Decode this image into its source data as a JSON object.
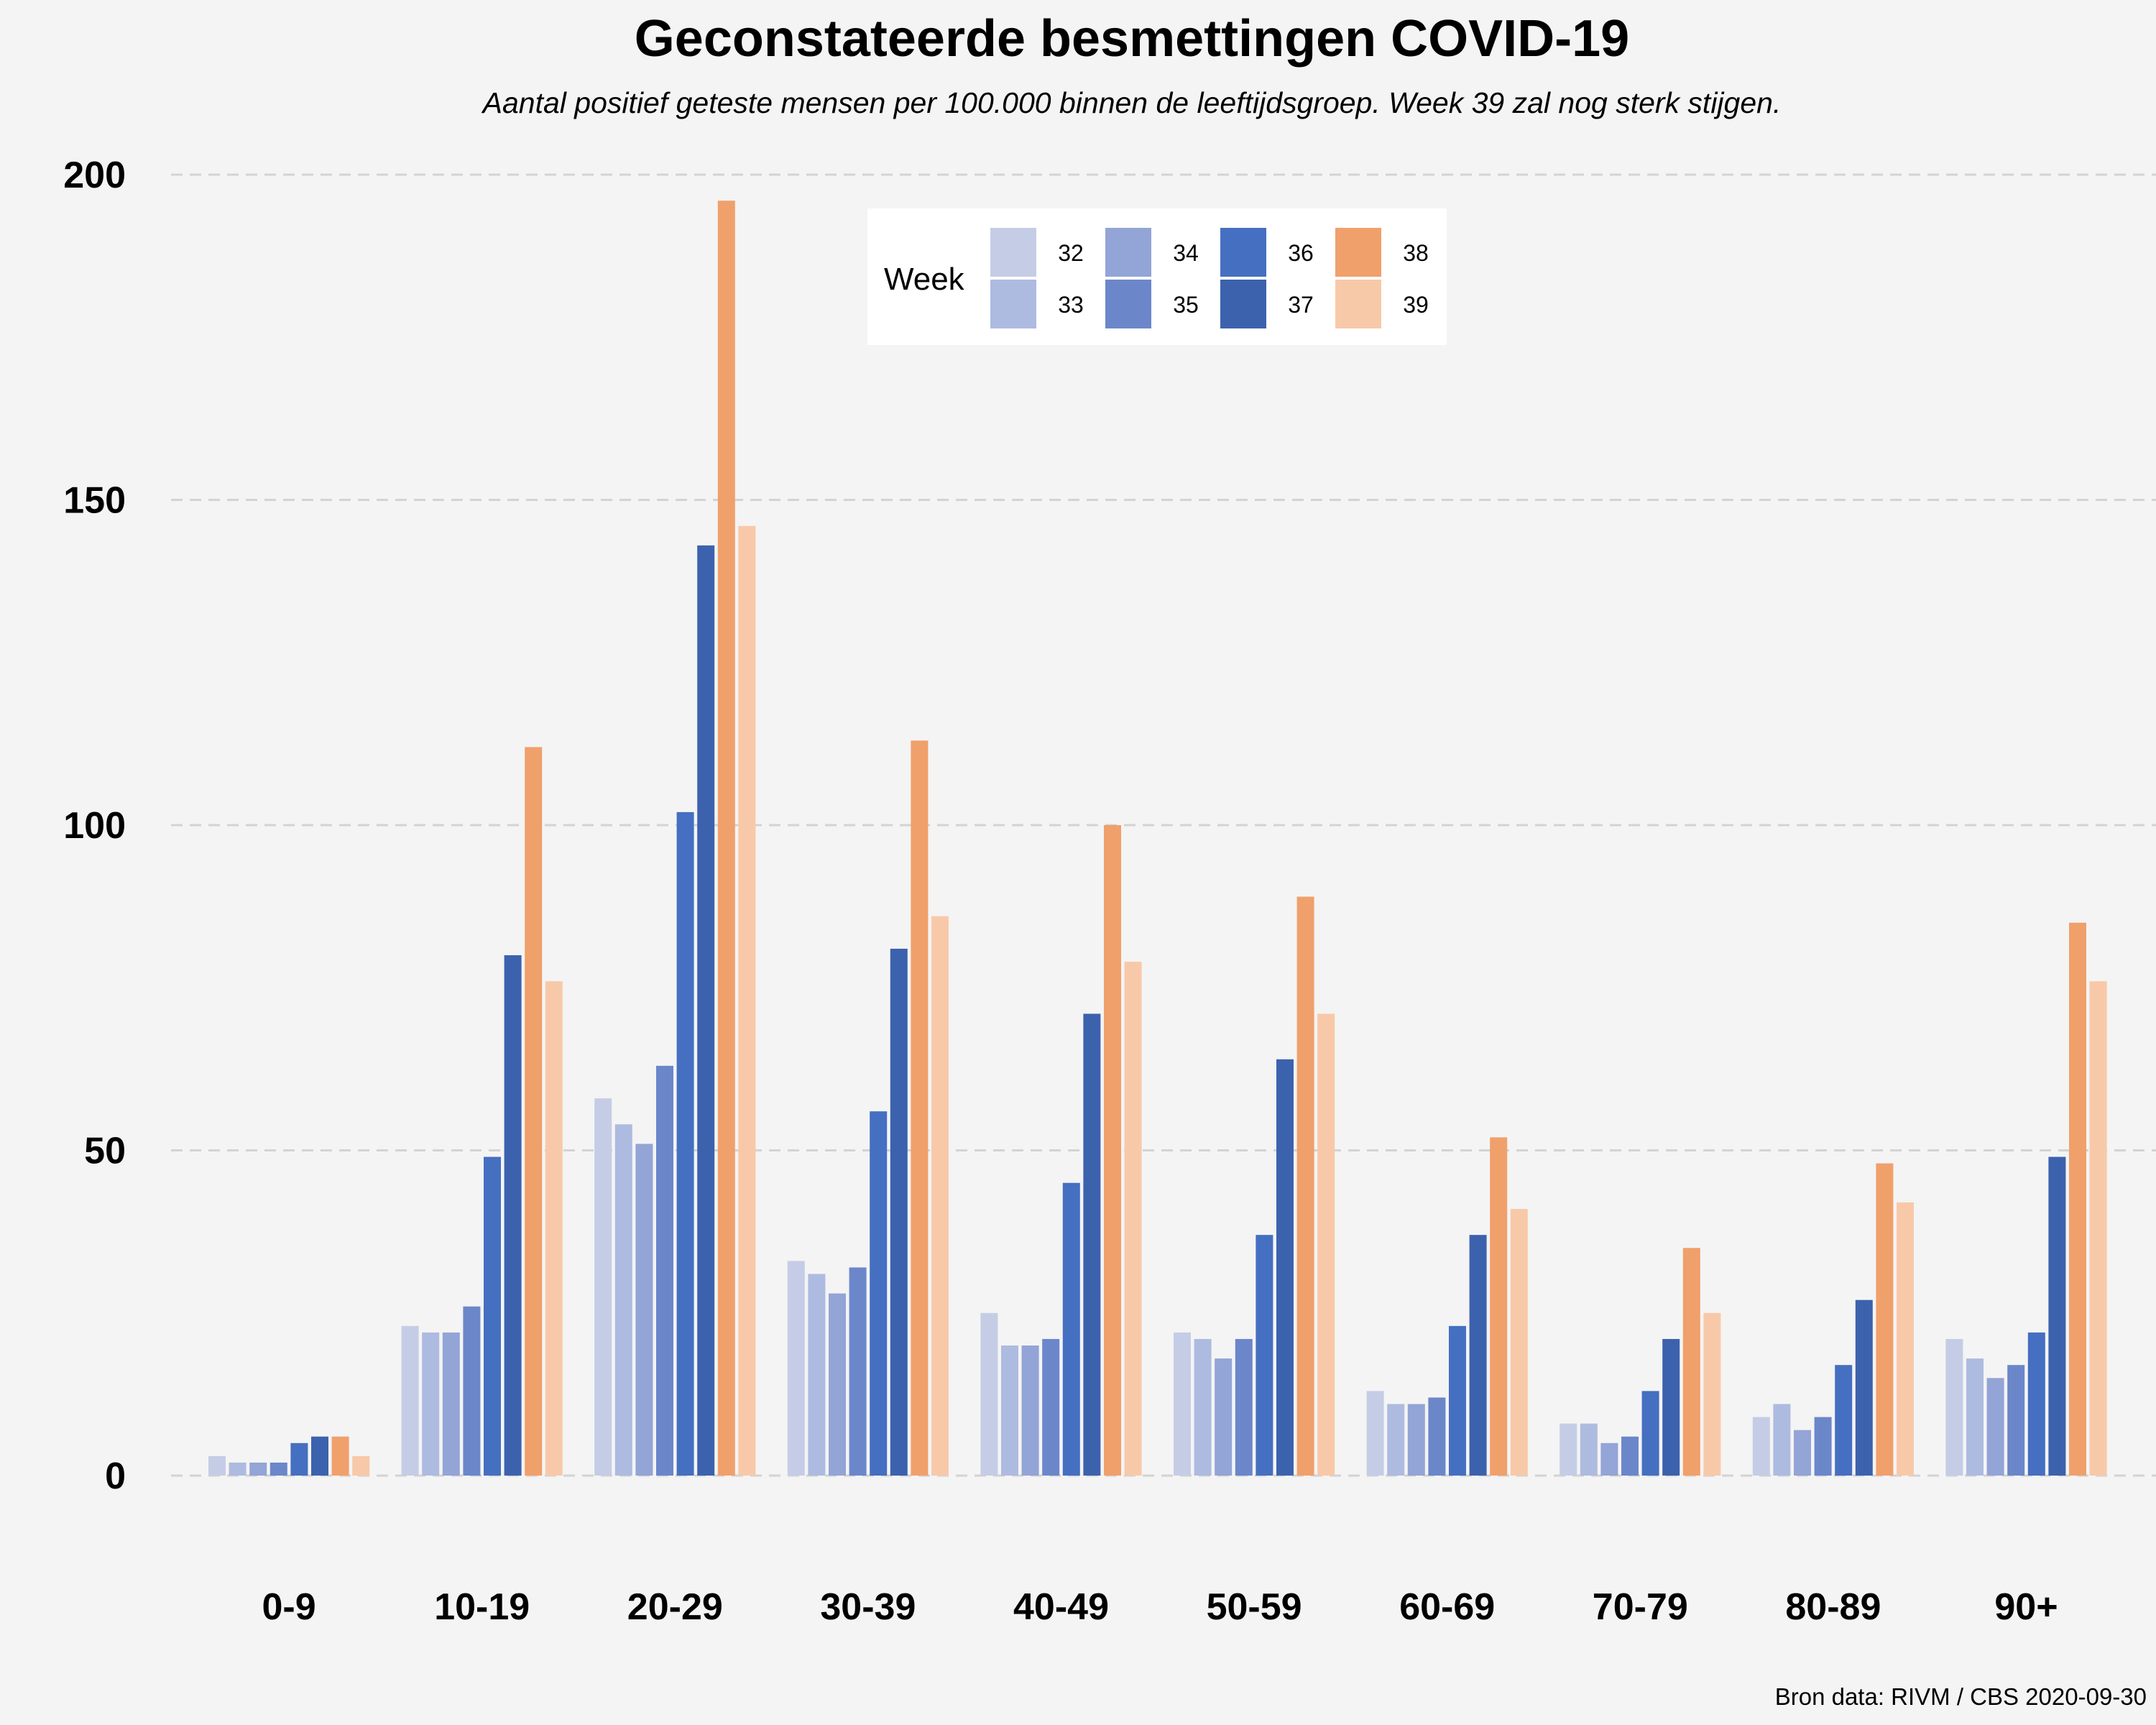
{
  "chart_data": {
    "type": "bar",
    "title": "Geconstateerde besmettingen COVID-19",
    "subtitle": "Aantal positief geteste mensen per 100.000 binnen de leeftijdsgroep. Week 39 zal nog sterk stijgen.",
    "caption": "Bron data: RIVM / CBS  2020-09-30",
    "xlabel": "",
    "ylabel": "",
    "ylim": [
      0,
      200
    ],
    "yticks": [
      "0",
      "50",
      "100",
      "150",
      "200"
    ],
    "grid": "horizontal dashed",
    "legend": {
      "title": "Week",
      "placement": "top-center"
    },
    "categories": [
      "0-9",
      "10-19",
      "20-29",
      "30-39",
      "40-49",
      "50-59",
      "60-69",
      "70-79",
      "80-89",
      "90+"
    ],
    "series": [
      {
        "name": "32",
        "color": "#c5cde6",
        "values": [
          3,
          23,
          58,
          33,
          25,
          22,
          13,
          8,
          9,
          21
        ]
      },
      {
        "name": "33",
        "color": "#aebbe0",
        "values": [
          2,
          22,
          54,
          31,
          20,
          21,
          11,
          8,
          11,
          18
        ]
      },
      {
        "name": "34",
        "color": "#93a4d6",
        "values": [
          2,
          22,
          51,
          28,
          20,
          18,
          11,
          5,
          7,
          15
        ]
      },
      {
        "name": "35",
        "color": "#6b87ca",
        "values": [
          2,
          26,
          63,
          32,
          21,
          21,
          12,
          6,
          9,
          17
        ]
      },
      {
        "name": "36",
        "color": "#456fc0",
        "values": [
          5,
          49,
          102,
          56,
          45,
          37,
          23,
          13,
          17,
          22
        ]
      },
      {
        "name": "37",
        "color": "#3c62ad",
        "values": [
          6,
          80,
          143,
          81,
          71,
          64,
          37,
          21,
          27,
          49
        ]
      },
      {
        "name": "38",
        "color": "#f0a06b",
        "values": [
          6,
          112,
          196,
          113,
          100,
          89,
          52,
          35,
          48,
          85
        ]
      },
      {
        "name": "39",
        "color": "#f8c9a9",
        "values": [
          3,
          76,
          146,
          86,
          79,
          71,
          41,
          25,
          42,
          76
        ]
      }
    ]
  }
}
